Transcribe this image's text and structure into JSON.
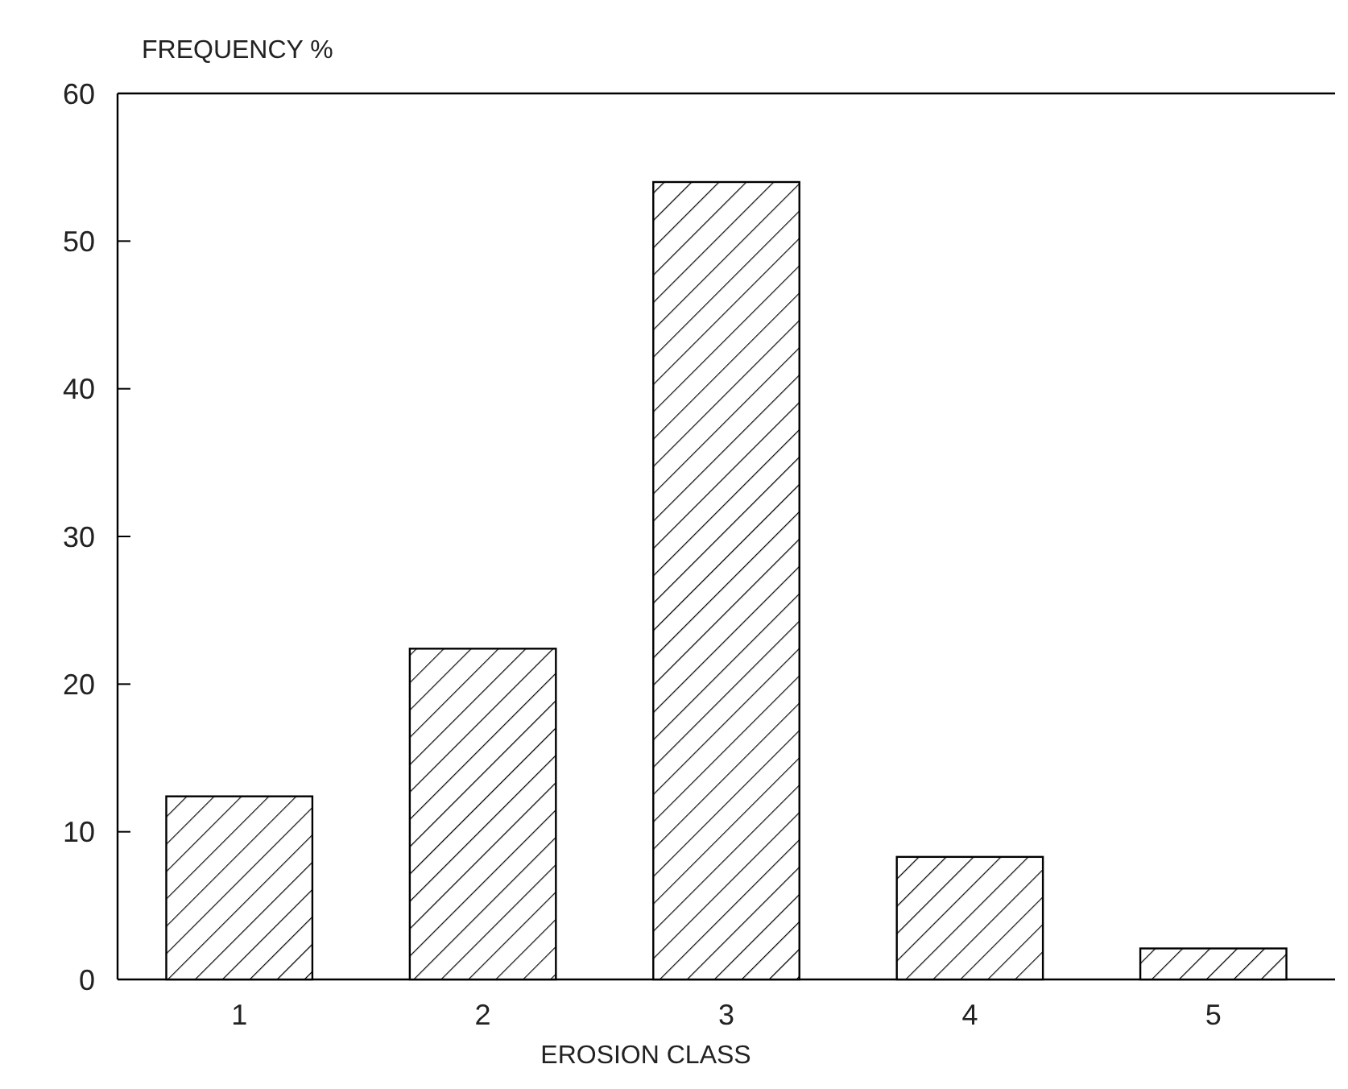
{
  "chart_data": {
    "type": "bar",
    "xlabel": "EROSION CLASS",
    "ylabel": "FREQUENCY %",
    "categories": [
      "1",
      "2",
      "3",
      "4",
      "5"
    ],
    "values": [
      12.4,
      22.4,
      54,
      8.3,
      2.1
    ],
    "color": "#000000",
    "ylim": [
      0,
      60
    ],
    "yticks": [
      0,
      10,
      20,
      30,
      40,
      50,
      60
    ],
    "grid": false
  }
}
